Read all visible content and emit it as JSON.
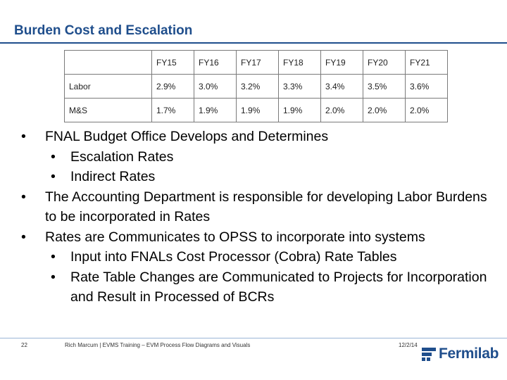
{
  "slide": {
    "title": "Burden Cost and Escalation"
  },
  "table": {
    "headers": [
      "",
      "FY15",
      "FY16",
      "FY17",
      "FY18",
      "FY19",
      "FY20",
      "FY21"
    ],
    "rows": [
      {
        "label": "Labor",
        "values": [
          "2.9%",
          "3.0%",
          "3.2%",
          "3.3%",
          "3.4%",
          "3.5%",
          "3.6%"
        ]
      },
      {
        "label": "M&S",
        "values": [
          "1.7%",
          "1.9%",
          "1.9%",
          "1.9%",
          "2.0%",
          "2.0%",
          "2.0%"
        ]
      }
    ]
  },
  "bullets": [
    {
      "level": 1,
      "text": "FNAL Budget Office Develops and Determines"
    },
    {
      "level": 2,
      "text": "Escalation Rates"
    },
    {
      "level": 2,
      "text": "Indirect Rates"
    },
    {
      "level": 1,
      "text": "The Accounting Department is responsible for developing Labor Burdens to be incorporated in Rates"
    },
    {
      "level": 1,
      "text": "Rates are Communicates to OPSS to incorporate into systems"
    },
    {
      "level": 2,
      "text": "Input into FNALs Cost Processor (Cobra) Rate Tables"
    },
    {
      "level": 2,
      "text": "Rate Table Changes are Communicated to Projects for Incorporation and Result in Processed of BCRs"
    }
  ],
  "footer": {
    "page_number": "22",
    "presenter": "Rich Marcum | EVMS Training – EVM Process Flow Diagrams and Visuals",
    "date": "12/2/14",
    "logo_text": "Fermilab",
    "logo_color": "#1f4e8c"
  },
  "icons": {
    "logo": "fermilab-logo-icon",
    "bullet": "bullet-icon"
  }
}
